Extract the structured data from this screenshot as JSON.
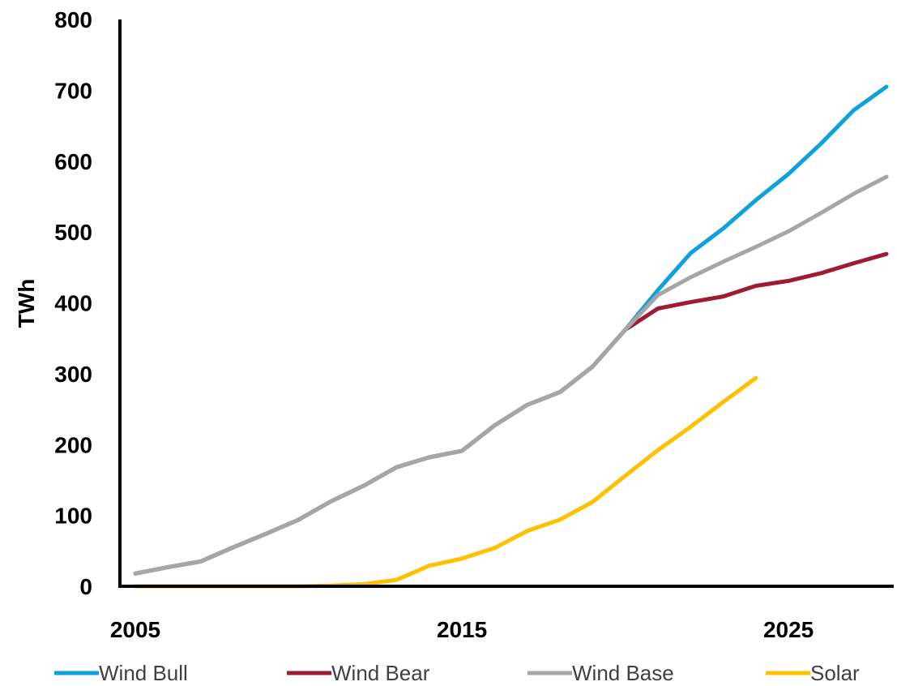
{
  "chart_data": {
    "type": "line",
    "title": "",
    "xlabel": "",
    "ylabel": "TWh",
    "xlim": [
      2005,
      2028
    ],
    "ylim": [
      0,
      800
    ],
    "yticks": [
      0,
      100,
      200,
      300,
      400,
      500,
      600,
      700,
      800
    ],
    "xticks": [
      2005,
      2015,
      2025
    ],
    "grid": false,
    "legend_position": "bottom",
    "series": [
      {
        "name": "Wind Bull",
        "color": "#0EA1DB",
        "x": [
          2005,
          2006,
          2007,
          2008,
          2009,
          2010,
          2011,
          2012,
          2013,
          2014,
          2015,
          2016,
          2017,
          2018,
          2019,
          2020,
          2021,
          2022,
          2023,
          2024,
          2025,
          2026,
          2027,
          2028
        ],
        "values": [
          18,
          27,
          35,
          55,
          74,
          94,
          120,
          142,
          168,
          182,
          191,
          227,
          256,
          274,
          310,
          362,
          418,
          470,
          505,
          545,
          582,
          625,
          672,
          705
        ]
      },
      {
        "name": "Wind Bear",
        "color": "#9E1B32",
        "x": [
          2005,
          2006,
          2007,
          2008,
          2009,
          2010,
          2011,
          2012,
          2013,
          2014,
          2015,
          2016,
          2017,
          2018,
          2019,
          2020,
          2021,
          2022,
          2023,
          2024,
          2025,
          2026,
          2027,
          2028
        ],
        "values": [
          18,
          27,
          35,
          55,
          74,
          94,
          120,
          142,
          168,
          182,
          191,
          227,
          256,
          274,
          310,
          362,
          392,
          401,
          409,
          424,
          431,
          442,
          456,
          469
        ]
      },
      {
        "name": "Wind Base",
        "color": "#A6A6A6",
        "x": [
          2005,
          2006,
          2007,
          2008,
          2009,
          2010,
          2011,
          2012,
          2013,
          2014,
          2015,
          2016,
          2017,
          2018,
          2019,
          2020,
          2021,
          2022,
          2023,
          2024,
          2025,
          2026,
          2027,
          2028
        ],
        "values": [
          18,
          27,
          35,
          55,
          74,
          94,
          120,
          142,
          168,
          182,
          191,
          227,
          256,
          274,
          310,
          362,
          411,
          436,
          458,
          479,
          501,
          527,
          554,
          578
        ]
      },
      {
        "name": "Solar",
        "color": "#FFC000",
        "x": [
          2005,
          2006,
          2007,
          2008,
          2009,
          2010,
          2011,
          2012,
          2013,
          2014,
          2015,
          2016,
          2017,
          2018,
          2019,
          2020,
          2021,
          2022,
          2023,
          2024
        ],
        "values": [
          0,
          0,
          0,
          0,
          0,
          0,
          1,
          3,
          9,
          29,
          39,
          54,
          78,
          94,
          119,
          156,
          192,
          225,
          260,
          294
        ]
      }
    ]
  }
}
